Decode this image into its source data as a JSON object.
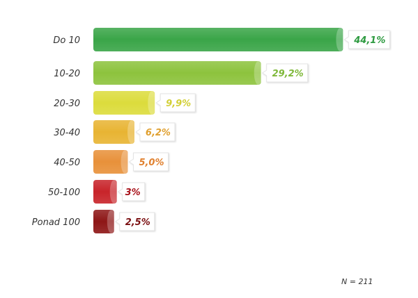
{
  "chart_data": {
    "type": "bar",
    "orientation": "horizontal",
    "categories": [
      "Do 10",
      "10-20",
      "20-30",
      "30-40",
      "40-50",
      "50-100",
      "Ponad 100"
    ],
    "values": [
      44.1,
      29.2,
      9.9,
      6.2,
      5.0,
      3,
      2.5
    ],
    "data_labels": [
      "44,1%",
      "29,2%",
      "9,9%",
      "6,2%",
      "5,0%",
      "3%",
      "2,5%"
    ],
    "colors": [
      "#3aa548",
      "#8dc33d",
      "#dcdc3c",
      "#e8b433",
      "#e8913a",
      "#c8242a",
      "#8e1616"
    ],
    "label_colors": [
      "#2e9a40",
      "#7fb83a",
      "#d2cf36",
      "#e0a030",
      "#e0802e",
      "#a8121a",
      "#7a0e10"
    ],
    "title": "",
    "xlabel": "",
    "ylabel": "",
    "grid": false,
    "legend": "none",
    "note": "N = 211"
  }
}
